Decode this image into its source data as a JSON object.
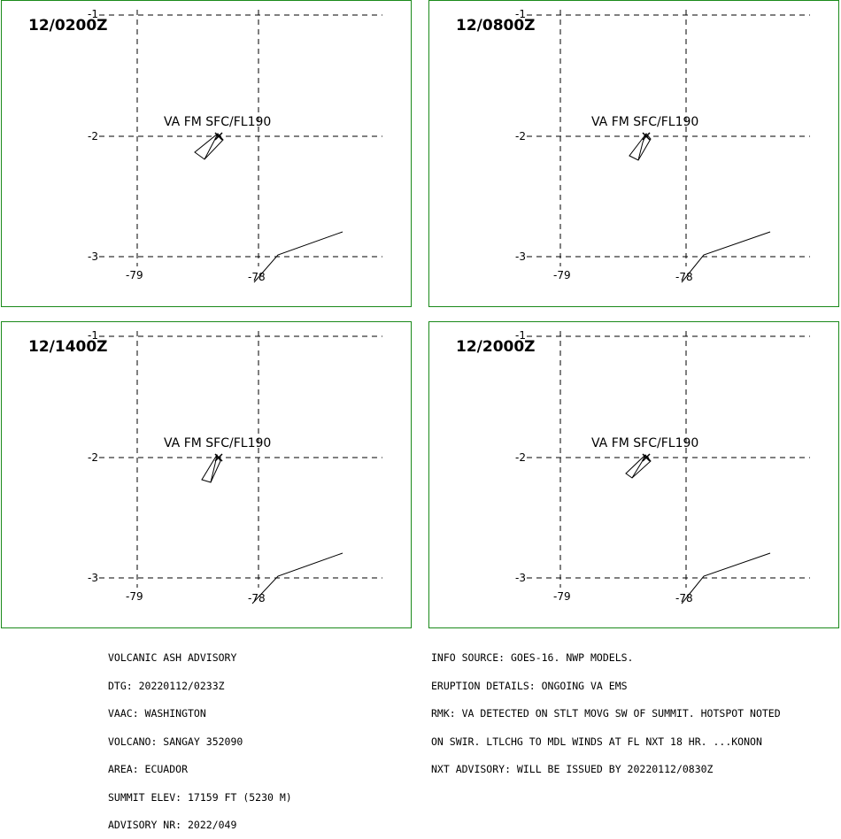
{
  "panels": [
    {
      "time": "12/0200Z",
      "va_label": "VA FM SFC/FL190"
    },
    {
      "time": "12/0800Z",
      "va_label": "VA FM SFC/FL190"
    },
    {
      "time": "12/1400Z",
      "va_label": "VA FM SFC/FL190"
    },
    {
      "time": "12/2000Z",
      "va_label": "VA FM SFC/FL190"
    }
  ],
  "axis": {
    "lat_ticks": [
      "-1",
      "-2",
      "-3"
    ],
    "lon_ticks": [
      "-79",
      "-78"
    ]
  },
  "colors": {
    "panel_border": "#1a8a1a",
    "lines": "#000000"
  },
  "left_text": [
    "VOLCANIC ASH ADVISORY",
    "DTG: 20220112/0233Z",
    "VAAC: WASHINGTON",
    "VOLCANO: SANGAY 352090",
    "AREA: ECUADOR",
    "SUMMIT ELEV: 17159 FT (5230 M)",
    "ADVISORY NR: 2022/049"
  ],
  "right_text": [
    "INFO SOURCE: GOES-16. NWP MODELS.",
    "ERUPTION DETAILS: ONGOING VA EMS",
    "RMK: VA DETECTED ON STLT MOVG SW OF SUMMIT. HOTSPOT NOTED",
    "ON SWIR. LTLCHG TO MDL WINDS AT FL NXT 18 HR. ...KONON",
    "NXT ADVISORY: WILL BE ISSUED BY 20220112/0830Z"
  ]
}
